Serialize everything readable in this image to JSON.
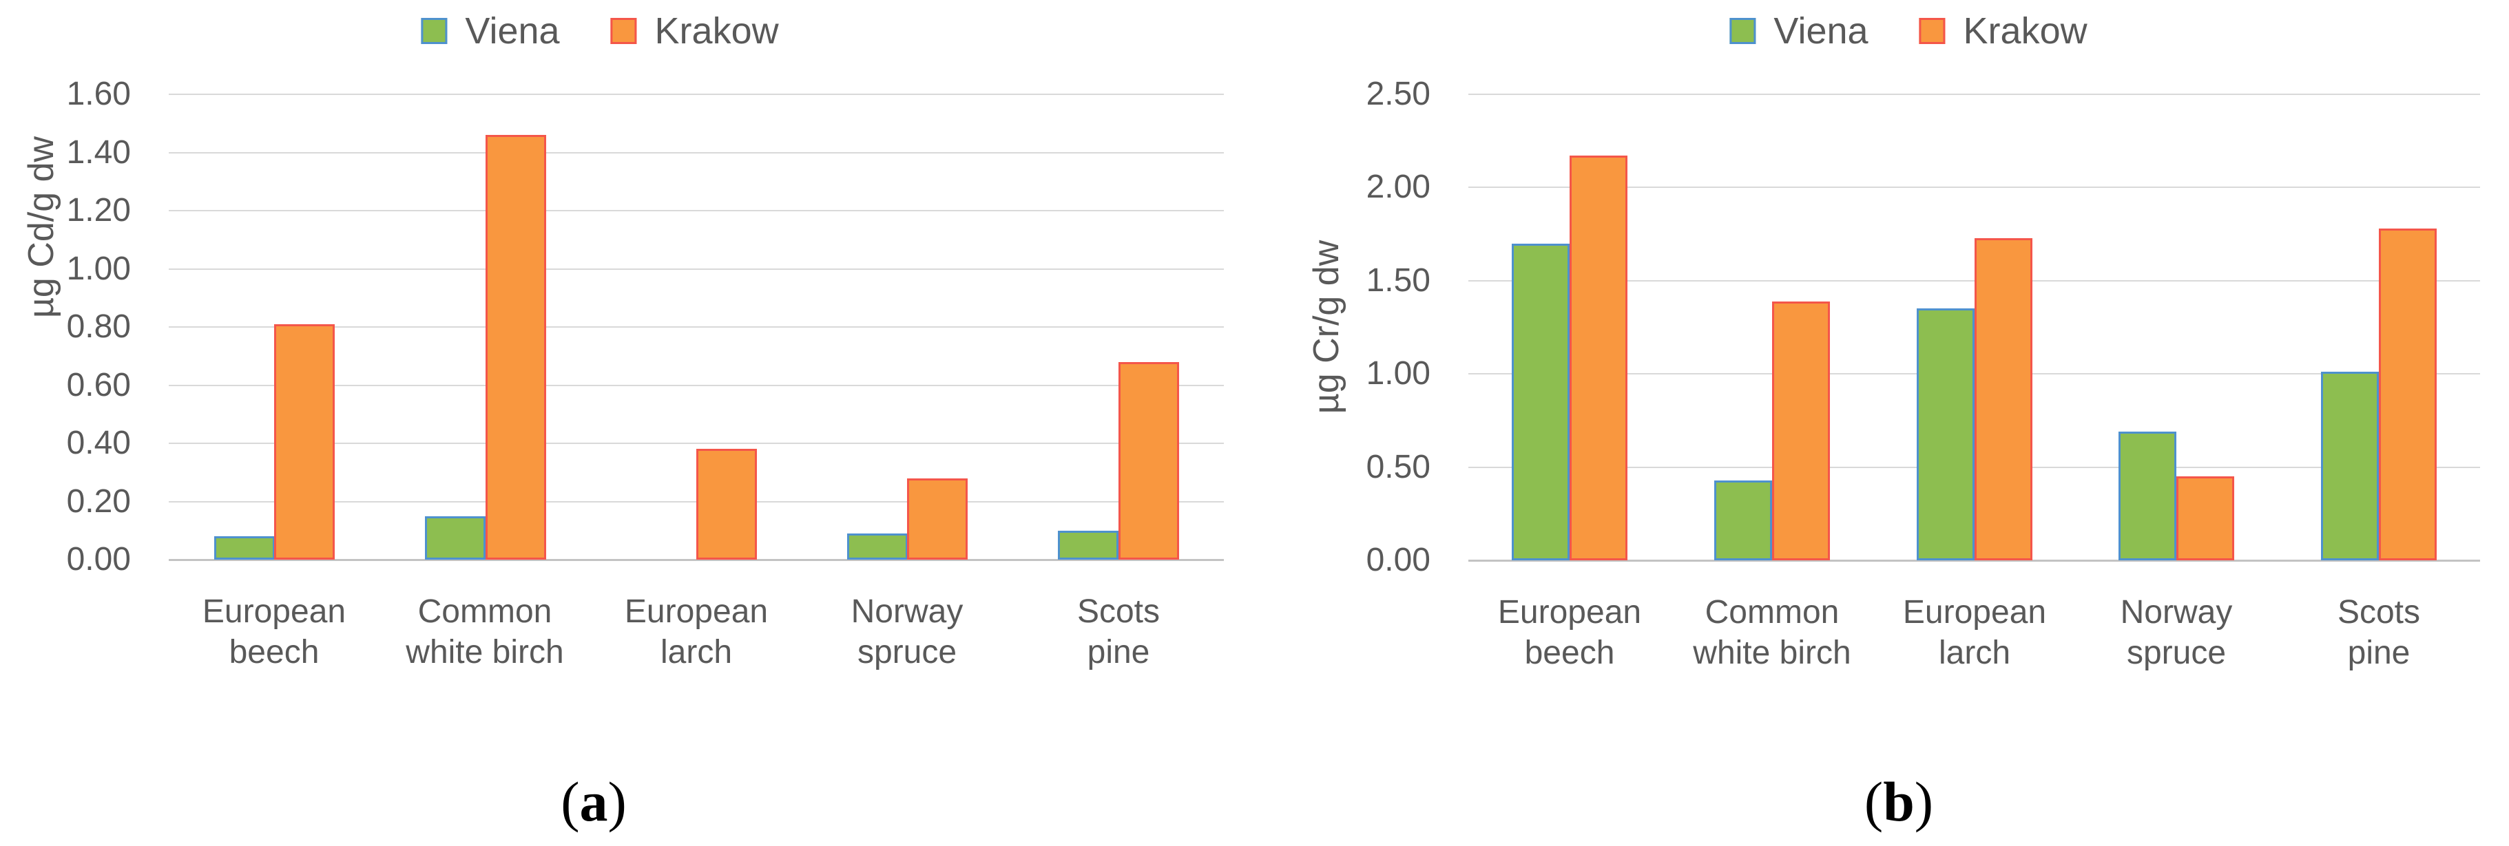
{
  "figure": {
    "background": "#FFFFFF",
    "text_color": "#595959",
    "gridline_color": "#D9D9D9"
  },
  "chart_data": [
    {
      "type": "bar",
      "title": "",
      "ylabel": "µg Cd/g dw",
      "xlabel": "",
      "caption": {
        "open": "(",
        "letter": "a",
        "close": ")"
      },
      "legend_position": "top",
      "grid": true,
      "categories": [
        "European beech",
        "Common white birch",
        "European larch",
        "Norway spruce",
        "Scots pine"
      ],
      "categories_2line": [
        [
          "European",
          "beech"
        ],
        [
          "Common",
          "white birch"
        ],
        [
          "European",
          "larch"
        ],
        [
          "Norway",
          "spruce"
        ],
        [
          "Scots",
          "pine"
        ]
      ],
      "series": [
        {
          "key": "viena",
          "name": "Viena",
          "fill": "#8DBE50",
          "border": "#4E91CE",
          "values": [
            0.08,
            0.15,
            0,
            0.09,
            0.1
          ]
        },
        {
          "key": "krakow",
          "name": "Krakow",
          "fill": "#F9973F",
          "border": "#F4564A",
          "values": [
            0.81,
            1.46,
            0.38,
            0.28,
            0.68
          ]
        }
      ],
      "ylim": [
        0,
        1.6
      ],
      "ytick_step": 0.2,
      "ytick_labels": [
        "0.00",
        "0.20",
        "0.40",
        "0.60",
        "0.80",
        "1.00",
        "1.20",
        "1.40",
        "1.60"
      ]
    },
    {
      "type": "bar",
      "title": "",
      "ylabel": "µg Cr/g dw",
      "xlabel": "",
      "caption": {
        "open": "(",
        "letter": "b",
        "close": ")"
      },
      "legend_position": "top",
      "grid": true,
      "categories": [
        "European beech",
        "Common white birch",
        "European larch",
        "Norway spruce",
        "Scots pine"
      ],
      "categories_2line": [
        [
          "European",
          "beech"
        ],
        [
          "Common",
          "white birch"
        ],
        [
          "European",
          "larch"
        ],
        [
          "Norway",
          "spruce"
        ],
        [
          "Scots",
          "pine"
        ]
      ],
      "series": [
        {
          "key": "viena",
          "name": "Viena",
          "fill": "#8DBE50",
          "border": "#4E91CE",
          "values": [
            1.7,
            0.43,
            1.35,
            0.69,
            1.01
          ]
        },
        {
          "key": "krakow",
          "name": "Krakow",
          "fill": "#F9973F",
          "border": "#F4564A",
          "values": [
            2.17,
            1.39,
            1.73,
            0.45,
            1.78
          ]
        }
      ],
      "ylim": [
        0,
        2.5
      ],
      "ytick_step": 0.5,
      "ytick_labels": [
        "0.00",
        "0.50",
        "1.00",
        "1.50",
        "2.00",
        "2.50"
      ]
    }
  ]
}
